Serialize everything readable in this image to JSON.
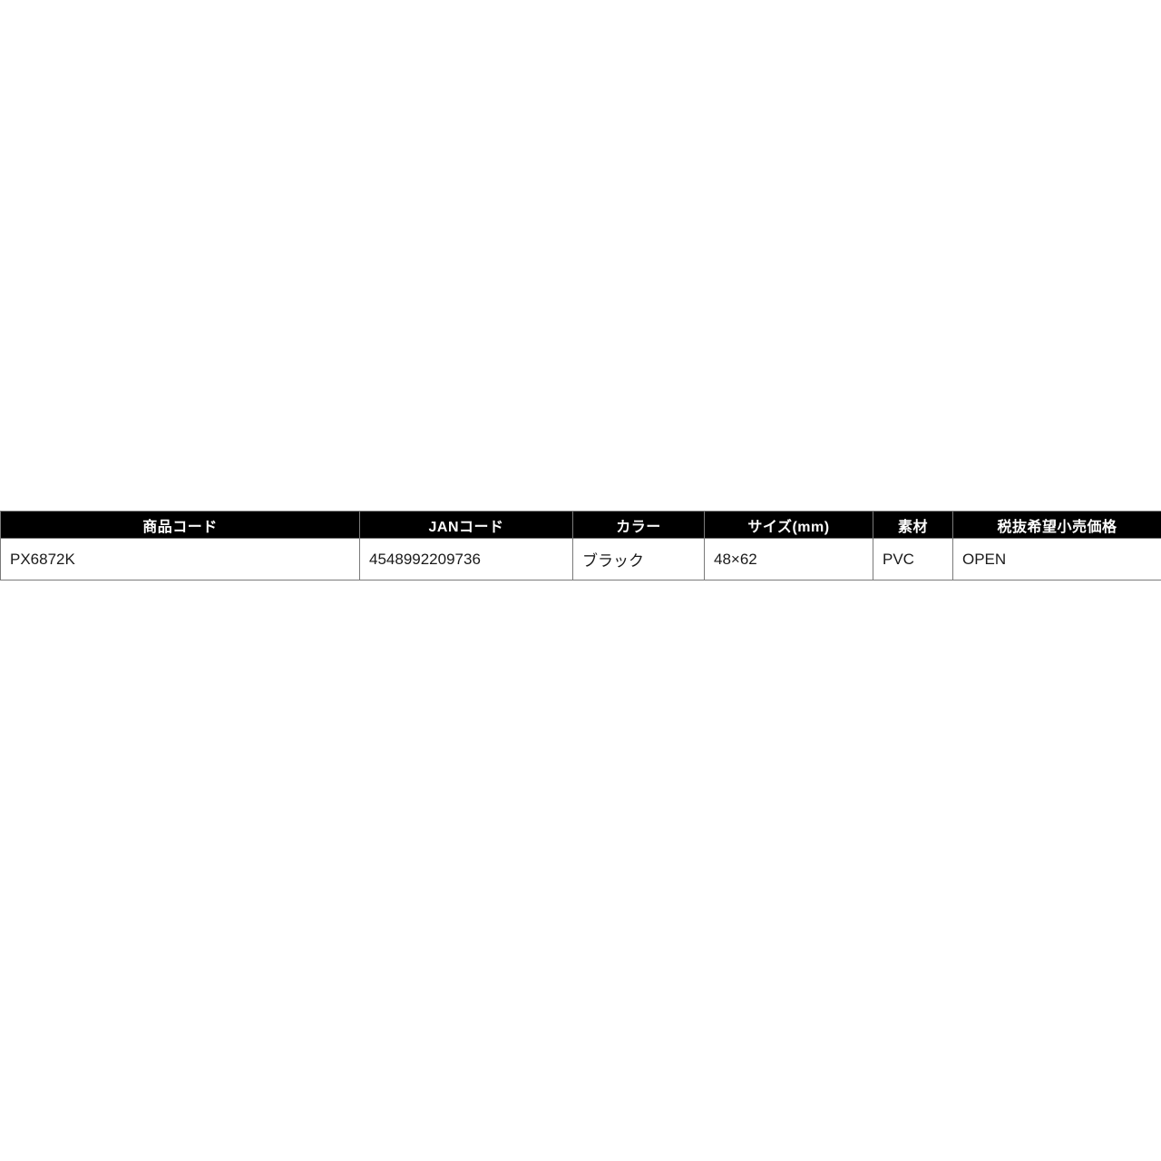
{
  "page": {
    "background_color": "#ffffff"
  },
  "table": {
    "header_bg_color": "#000000",
    "header_text_color": "#ffffff",
    "body_text_color": "#1a1a1a",
    "border_color": "#7a7a7a",
    "columns": [
      {
        "label": "商品コード"
      },
      {
        "label": "JANコード"
      },
      {
        "label": "カラー"
      },
      {
        "label": "サイズ(mm)"
      },
      {
        "label": "素材"
      },
      {
        "label": "税抜希望小売価格"
      }
    ],
    "rows": [
      {
        "product_code": "PX6872K",
        "jan_code": "4548992209736",
        "color": "ブラック",
        "size_mm": "48×62",
        "material": "PVC",
        "price": "OPEN"
      }
    ]
  }
}
